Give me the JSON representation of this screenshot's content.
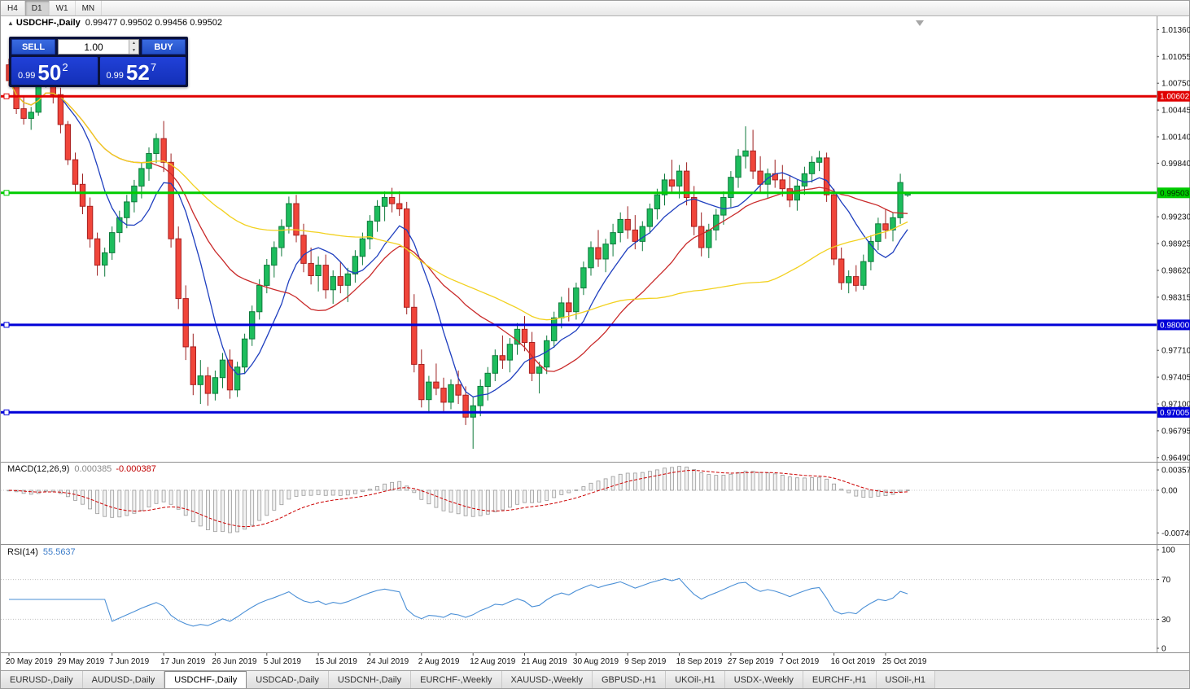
{
  "toolbar": {
    "timeframes": [
      {
        "label": "H4",
        "active": false
      },
      {
        "label": "D1",
        "active": true
      },
      {
        "label": "W1",
        "active": false
      },
      {
        "label": "MN",
        "active": false
      }
    ]
  },
  "chart": {
    "title_symbol": "USDCHF-,Daily",
    "title_ohlc": "0.99477 0.99502 0.99456 0.99502"
  },
  "icons": {
    "chart_marker": "▲",
    "spin_up": "▲",
    "spin_down": "▼"
  },
  "trade_panel": {
    "sell_label": "SELL",
    "buy_label": "BUY",
    "volume": "1.00",
    "sell_price_prefix": "0.99",
    "sell_price_big": "50",
    "sell_price_sup": "2",
    "buy_price_prefix": "0.99",
    "buy_price_big": "52",
    "buy_price_sup": "7"
  },
  "price_axis": {
    "ticks": [
      "1.01360",
      "1.01055",
      "1.00750",
      "1.00445",
      "1.00140",
      "0.99840",
      "0.99230",
      "0.98925",
      "0.98620",
      "0.98315",
      "0.97710",
      "0.97405",
      "0.97100",
      "0.96795",
      "0.96490"
    ],
    "badges": [
      {
        "text": "1.00602",
        "bg": "#e00000",
        "fg": "#ffffff"
      },
      {
        "text": "0.99503",
        "bg": "#00cc00",
        "fg": "#002b00"
      },
      {
        "text": "0.98000",
        "bg": "#0000d8",
        "fg": "#ffffff"
      },
      {
        "text": "0.97005",
        "bg": "#0000d8",
        "fg": "#ffffff"
      }
    ]
  },
  "hlines": [
    {
      "price": 1.00602,
      "color": "#e00000",
      "width": 3
    },
    {
      "price": 0.99503,
      "color": "#00cc00",
      "width": 3
    },
    {
      "price": 0.98,
      "color": "#0000d8",
      "width": 3
    },
    {
      "price": 0.97005,
      "color": "#0000d8",
      "width": 3
    }
  ],
  "macd_panel": {
    "name": "MACD(12,26,9)",
    "value_main": "0.000385",
    "value_signal": "-0.000387",
    "axis": [
      "0.003574",
      "0.00",
      "-0.00749"
    ],
    "fast": 12,
    "slow": 26,
    "signal": 9
  },
  "rsi_panel": {
    "name": "RSI(14)",
    "value": "55.5637",
    "axis": [
      "100",
      "70",
      "30",
      "0"
    ],
    "period": 14,
    "levels": [
      30,
      70
    ]
  },
  "tabs": [
    {
      "label": "EURUSD-,Daily",
      "active": false
    },
    {
      "label": "AUDUSD-,Daily",
      "active": false
    },
    {
      "label": "USDCHF-,Daily",
      "active": true
    },
    {
      "label": "USDCAD-,Daily",
      "active": false
    },
    {
      "label": "USDCNH-,Daily",
      "active": false
    },
    {
      "label": "EURCHF-,Weekly",
      "active": false
    },
    {
      "label": "XAUUSD-,Weekly",
      "active": false
    },
    {
      "label": "GBPUSD-,H1",
      "active": false
    },
    {
      "label": "UKOil-,H1",
      "active": false
    },
    {
      "label": "USDX-,Weekly",
      "active": false
    },
    {
      "label": "EURCHF-,H1",
      "active": false
    },
    {
      "label": "USOil-,H1",
      "active": false
    }
  ],
  "chart_data": {
    "type": "candlestick",
    "symbol": "USDCHF-",
    "timeframe": "Daily",
    "ylim": [
      0.9647,
      1.0141
    ],
    "x_labels": [
      {
        "i": 0,
        "text": "20 May 2019"
      },
      {
        "i": 7,
        "text": "29 May 2019"
      },
      {
        "i": 14,
        "text": "7 Jun 2019"
      },
      {
        "i": 21,
        "text": "17 Jun 2019"
      },
      {
        "i": 28,
        "text": "26 Jun 2019"
      },
      {
        "i": 35,
        "text": "5 Jul 2019"
      },
      {
        "i": 42,
        "text": "15 Jul 2019"
      },
      {
        "i": 49,
        "text": "24 Jul 2019"
      },
      {
        "i": 56,
        "text": "2 Aug 2019"
      },
      {
        "i": 63,
        "text": "12 Aug 2019"
      },
      {
        "i": 70,
        "text": "21 Aug 2019"
      },
      {
        "i": 77,
        "text": "30 Aug 2019"
      },
      {
        "i": 84,
        "text": "9 Sep 2019"
      },
      {
        "i": 91,
        "text": "18 Sep 2019"
      },
      {
        "i": 98,
        "text": "27 Sep 2019"
      },
      {
        "i": 105,
        "text": "7 Oct 2019"
      },
      {
        "i": 112,
        "text": "16 Oct 2019"
      },
      {
        "i": 119,
        "text": "25 Oct 2019"
      }
    ],
    "moving_averages": [
      {
        "period": 8,
        "color": "#1f3fbf"
      },
      {
        "period": 20,
        "color": "#c92a2a"
      },
      {
        "period": 50,
        "color": "#f2d11f"
      }
    ],
    "candles": [
      [
        1.0096,
        1.0103,
        1.0072,
        1.0078
      ],
      [
        1.0078,
        1.0086,
        1.004,
        1.0046
      ],
      [
        1.0046,
        1.006,
        1.0028,
        1.0035
      ],
      [
        1.0035,
        1.0048,
        1.0022,
        1.0042
      ],
      [
        1.0042,
        1.008,
        1.0038,
        1.0075
      ],
      [
        1.0075,
        1.0113,
        1.007,
        1.0108
      ],
      [
        1.0108,
        1.0112,
        1.0052,
        1.0062
      ],
      [
        1.0062,
        1.007,
        1.0018,
        1.0028
      ],
      [
        1.0028,
        1.0032,
        0.9982,
        0.9988
      ],
      [
        0.9988,
        0.9996,
        0.995,
        0.996
      ],
      [
        0.996,
        0.9972,
        0.9926,
        0.9935
      ],
      [
        0.9935,
        0.9945,
        0.9888,
        0.9898
      ],
      [
        0.9898,
        0.9905,
        0.9856,
        0.9868
      ],
      [
        0.9868,
        0.9888,
        0.9855,
        0.9882
      ],
      [
        0.9882,
        0.9912,
        0.9874,
        0.9905
      ],
      [
        0.9905,
        0.993,
        0.9894,
        0.9922
      ],
      [
        0.9922,
        0.9948,
        0.991,
        0.994
      ],
      [
        0.994,
        0.9965,
        0.9928,
        0.9958
      ],
      [
        0.9958,
        0.9985,
        0.9944,
        0.9978
      ],
      [
        0.9978,
        1.0002,
        0.9964,
        0.9995
      ],
      [
        0.9995,
        1.0018,
        0.9984,
        1.0012
      ],
      [
        1.0012,
        1.0032,
        0.9974,
        0.9985
      ],
      [
        0.9985,
        0.9995,
        0.9888,
        0.9898
      ],
      [
        0.9898,
        0.9912,
        0.9818,
        0.983
      ],
      [
        0.983,
        0.9845,
        0.976,
        0.9775
      ],
      [
        0.9775,
        0.979,
        0.972,
        0.9732
      ],
      [
        0.9732,
        0.976,
        0.971,
        0.9742
      ],
      [
        0.9742,
        0.9752,
        0.9708,
        0.9722
      ],
      [
        0.9722,
        0.9748,
        0.9714,
        0.974
      ],
      [
        0.974,
        0.9768,
        0.9728,
        0.976
      ],
      [
        0.976,
        0.9772,
        0.9716,
        0.9726
      ],
      [
        0.9726,
        0.9758,
        0.9718,
        0.9752
      ],
      [
        0.9752,
        0.979,
        0.9744,
        0.9784
      ],
      [
        0.9784,
        0.9822,
        0.9776,
        0.9815
      ],
      [
        0.9815,
        0.9852,
        0.9806,
        0.9845
      ],
      [
        0.9845,
        0.9875,
        0.9836,
        0.9868
      ],
      [
        0.9868,
        0.9895,
        0.9854,
        0.9888
      ],
      [
        0.9888,
        0.992,
        0.9878,
        0.9912
      ],
      [
        0.9912,
        0.9946,
        0.9904,
        0.9938
      ],
      [
        0.9938,
        0.9948,
        0.9894,
        0.9902
      ],
      [
        0.9902,
        0.9915,
        0.986,
        0.987
      ],
      [
        0.987,
        0.9888,
        0.9846,
        0.9856
      ],
      [
        0.9856,
        0.9878,
        0.9838,
        0.9868
      ],
      [
        0.9868,
        0.988,
        0.983,
        0.984
      ],
      [
        0.984,
        0.9862,
        0.9824,
        0.9855
      ],
      [
        0.9855,
        0.9872,
        0.9836,
        0.9845
      ],
      [
        0.9845,
        0.9865,
        0.9826,
        0.9858
      ],
      [
        0.9858,
        0.9885,
        0.9848,
        0.9878
      ],
      [
        0.9878,
        0.9905,
        0.9868,
        0.9898
      ],
      [
        0.9898,
        0.9925,
        0.9886,
        0.9918
      ],
      [
        0.9918,
        0.9942,
        0.9906,
        0.9935
      ],
      [
        0.9935,
        0.9952,
        0.9918,
        0.9945
      ],
      [
        0.9945,
        0.9956,
        0.9928,
        0.9938
      ],
      [
        0.9938,
        0.9952,
        0.9924,
        0.9932
      ],
      [
        0.9932,
        0.994,
        0.9812,
        0.982
      ],
      [
        0.982,
        0.9835,
        0.9746,
        0.9755
      ],
      [
        0.9755,
        0.9772,
        0.9706,
        0.9715
      ],
      [
        0.9715,
        0.9742,
        0.97,
        0.9735
      ],
      [
        0.9735,
        0.9756,
        0.972,
        0.9728
      ],
      [
        0.9728,
        0.974,
        0.9702,
        0.9712
      ],
      [
        0.9712,
        0.9738,
        0.9704,
        0.9732
      ],
      [
        0.9732,
        0.9748,
        0.971,
        0.972
      ],
      [
        0.972,
        0.973,
        0.9686,
        0.9695
      ],
      [
        0.9695,
        0.9718,
        0.9659,
        0.9708
      ],
      [
        0.9708,
        0.9738,
        0.9696,
        0.973
      ],
      [
        0.973,
        0.9752,
        0.9714,
        0.9745
      ],
      [
        0.9745,
        0.9772,
        0.9736,
        0.9765
      ],
      [
        0.9765,
        0.9788,
        0.975,
        0.976
      ],
      [
        0.976,
        0.9785,
        0.9746,
        0.9778
      ],
      [
        0.9778,
        0.9802,
        0.9766,
        0.9795
      ],
      [
        0.9795,
        0.981,
        0.977,
        0.978
      ],
      [
        0.978,
        0.9792,
        0.9736,
        0.9745
      ],
      [
        0.9745,
        0.9758,
        0.9722,
        0.9752
      ],
      [
        0.9752,
        0.9788,
        0.9744,
        0.9782
      ],
      [
        0.9782,
        0.9815,
        0.9774,
        0.9808
      ],
      [
        0.9808,
        0.9832,
        0.9796,
        0.9825
      ],
      [
        0.9825,
        0.9842,
        0.9804,
        0.9815
      ],
      [
        0.9815,
        0.9848,
        0.9806,
        0.9842
      ],
      [
        0.9842,
        0.9872,
        0.9834,
        0.9865
      ],
      [
        0.9865,
        0.9895,
        0.9856,
        0.9888
      ],
      [
        0.9888,
        0.9908,
        0.9866,
        0.9875
      ],
      [
        0.9875,
        0.9898,
        0.986,
        0.9892
      ],
      [
        0.9892,
        0.9915,
        0.9878,
        0.9905
      ],
      [
        0.9905,
        0.9928,
        0.9894,
        0.992
      ],
      [
        0.992,
        0.9935,
        0.9898,
        0.9908
      ],
      [
        0.9908,
        0.9925,
        0.9886,
        0.9895
      ],
      [
        0.9895,
        0.9918,
        0.9884,
        0.9912
      ],
      [
        0.9912,
        0.9938,
        0.9904,
        0.9932
      ],
      [
        0.9932,
        0.9955,
        0.992,
        0.9948
      ],
      [
        0.9948,
        0.9972,
        0.9936,
        0.9965
      ],
      [
        0.9965,
        0.9988,
        0.995,
        0.9958
      ],
      [
        0.9958,
        0.9982,
        0.9944,
        0.9975
      ],
      [
        0.9975,
        0.9985,
        0.9936,
        0.9945
      ],
      [
        0.9945,
        0.9958,
        0.9902,
        0.9912
      ],
      [
        0.9912,
        0.9928,
        0.9878,
        0.9888
      ],
      [
        0.9888,
        0.9915,
        0.9876,
        0.9908
      ],
      [
        0.9908,
        0.9932,
        0.9896,
        0.9925
      ],
      [
        0.9925,
        0.9952,
        0.9914,
        0.9945
      ],
      [
        0.9945,
        0.9975,
        0.9934,
        0.9968
      ],
      [
        0.9968,
        1.0,
        0.9956,
        0.9992
      ],
      [
        0.9992,
        1.0026,
        0.9978,
        0.9998
      ],
      [
        0.9998,
        1.0022,
        0.9966,
        0.9975
      ],
      [
        0.9975,
        0.9992,
        0.995,
        0.996
      ],
      [
        0.996,
        0.9978,
        0.9944,
        0.9972
      ],
      [
        0.9972,
        0.9988,
        0.9956,
        0.9965
      ],
      [
        0.9965,
        0.9982,
        0.9946,
        0.9955
      ],
      [
        0.9955,
        0.997,
        0.9934,
        0.9942
      ],
      [
        0.9942,
        0.9965,
        0.993,
        0.9958
      ],
      [
        0.9958,
        0.998,
        0.9948,
        0.9972
      ],
      [
        0.9972,
        0.9992,
        0.9962,
        0.9985
      ],
      [
        0.9985,
        0.9998,
        0.9975,
        0.999
      ],
      [
        0.999,
        0.9996,
        0.994,
        0.9948
      ],
      [
        0.9948,
        0.9955,
        0.9868,
        0.9875
      ],
      [
        0.9875,
        0.9888,
        0.984,
        0.9848
      ],
      [
        0.9848,
        0.9862,
        0.9836,
        0.9855
      ],
      [
        0.9855,
        0.9868,
        0.9838,
        0.9845
      ],
      [
        0.9845,
        0.988,
        0.984,
        0.9872
      ],
      [
        0.9872,
        0.9902,
        0.9862,
        0.9895
      ],
      [
        0.9895,
        0.9922,
        0.9885,
        0.9915
      ],
      [
        0.9915,
        0.9932,
        0.9898,
        0.9908
      ],
      [
        0.9908,
        0.9928,
        0.9895,
        0.9922
      ],
      [
        0.9922,
        0.9972,
        0.9915,
        0.9962
      ],
      [
        0.99477,
        0.99502,
        0.99456,
        0.99502
      ]
    ]
  }
}
